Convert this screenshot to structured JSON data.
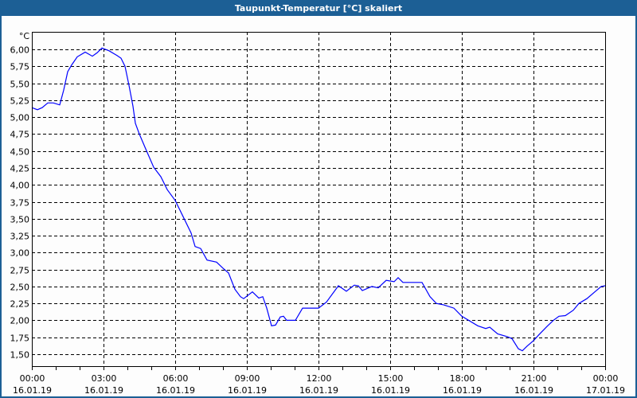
{
  "window": {
    "title": "Taupunkt-Temperatur [°C] skaliert"
  },
  "chart_data": {
    "type": "line",
    "title": "Taupunkt-Temperatur [°C] skaliert",
    "ylabel": "°C",
    "xlabel": "",
    "ylim": [
      1.375,
      6.25
    ],
    "yticks": [
      "1,50",
      "1,75",
      "2,00",
      "2,25",
      "2,50",
      "2,75",
      "3,00",
      "3,25",
      "3,50",
      "3,75",
      "4,00",
      "4,25",
      "4,50",
      "4,75",
      "5,00",
      "5,25",
      "5,50",
      "5,75",
      "6,00"
    ],
    "ytick_values": [
      1.5,
      1.75,
      2.0,
      2.25,
      2.5,
      2.75,
      3.0,
      3.25,
      3.5,
      3.75,
      4.0,
      4.25,
      4.5,
      4.75,
      5.0,
      5.25,
      5.5,
      5.75,
      6.0
    ],
    "xlim": [
      "16.01.19 00:00",
      "17.01.19 00:00"
    ],
    "xticks": [
      {
        "time": "00:00",
        "date": "16.01.19"
      },
      {
        "time": "03:00",
        "date": "16.01.19"
      },
      {
        "time": "06:00",
        "date": "16.01.19"
      },
      {
        "time": "09:00",
        "date": "16.01.19"
      },
      {
        "time": "12:00",
        "date": "16.01.19"
      },
      {
        "time": "15:00",
        "date": "16.01.19"
      },
      {
        "time": "18:00",
        "date": "16.01.19"
      },
      {
        "time": "21:00",
        "date": "16.01.19"
      },
      {
        "time": "00:00",
        "date": "17.01.19"
      }
    ],
    "grid": true,
    "line_color": "#0000ff",
    "series": [
      {
        "x": [
          "16.01.19 00:00",
          "16.01.19 00:14",
          "16.01.19 00:26",
          "16.01.19 00:40",
          "16.01.19 00:54",
          "16.01.19 01:10",
          "16.01.19 01:20",
          "16.01.19 01:30",
          "16.01.19 01:40",
          "16.01.19 01:54",
          "16.01.19 02:14",
          "16.01.19 02:32",
          "16.01.19 02:44",
          "16.01.19 02:56",
          "16.01.19 03:14",
          "16.01.19 03:34",
          "16.01.19 03:44",
          "16.01.19 03:54",
          "16.01.19 04:04",
          "16.01.19 04:14",
          "16.01.19 04:20",
          "16.01.19 04:30",
          "16.01.19 04:46",
          "16.01.19 05:06",
          "16.01.19 05:24",
          "16.01.19 05:40",
          "16.01.19 06:00",
          "16.01.19 06:20",
          "16.01.19 06:40",
          "16.01.19 06:50",
          "16.01.19 07:04",
          "16.01.19 07:20",
          "16.01.19 07:44",
          "16.01.19 08:00",
          "16.01.19 08:14",
          "16.01.19 08:30",
          "16.01.19 08:44",
          "16.01.19 08:52",
          "16.01.19 09:14",
          "16.01.19 09:30",
          "16.01.19 09:40",
          "16.01.19 09:50",
          "16.01.19 10:02",
          "16.01.19 10:12",
          "16.01.19 10:24",
          "16.01.19 10:32",
          "16.01.19 10:40",
          "16.01.19 11:02",
          "16.01.19 11:20",
          "16.01.19 11:34",
          "16.01.19 12:00",
          "16.01.19 12:20",
          "16.01.19 12:50",
          "16.01.19 13:10",
          "16.01.19 13:30",
          "16.01.19 13:40",
          "16.01.19 13:50",
          "16.01.19 14:14",
          "16.01.19 14:30",
          "16.01.19 14:50",
          "16.01.19 15:10",
          "16.01.19 15:20",
          "16.01.19 15:32",
          "16.01.19 16:00",
          "16.01.19 16:20",
          "16.01.19 16:40",
          "16.01.19 16:56",
          "16.01.19 17:14",
          "16.01.19 17:40",
          "16.01.19 18:00",
          "16.01.19 18:40",
          "16.01.19 19:00",
          "16.01.19 19:10",
          "16.01.19 19:30",
          "16.01.19 19:54",
          "16.01.19 20:06",
          "16.01.19 20:22",
          "16.01.19 20:32",
          "16.01.19 20:44",
          "16.01.19 21:00",
          "16.01.19 21:14",
          "16.01.19 21:34",
          "16.01.19 21:50",
          "16.01.19 22:04",
          "16.01.19 22:20",
          "16.01.19 22:40",
          "16.01.19 22:54",
          "16.01.19 23:14",
          "16.01.19 23:34",
          "16.01.19 23:50",
          "17.01.19 00:00"
        ],
        "y": [
          5.14,
          5.11,
          5.14,
          5.21,
          5.21,
          5.18,
          5.4,
          5.67,
          5.77,
          5.89,
          5.96,
          5.9,
          5.95,
          6.02,
          5.98,
          5.91,
          5.87,
          5.75,
          5.47,
          5.16,
          4.91,
          4.75,
          4.53,
          4.26,
          4.12,
          3.93,
          3.77,
          3.53,
          3.29,
          3.09,
          3.06,
          2.89,
          2.86,
          2.77,
          2.7,
          2.46,
          2.35,
          2.32,
          2.42,
          2.33,
          2.35,
          2.18,
          1.92,
          1.93,
          2.05,
          2.06,
          2.0,
          2.0,
          2.18,
          2.18,
          2.18,
          2.27,
          2.51,
          2.43,
          2.52,
          2.51,
          2.44,
          2.5,
          2.48,
          2.59,
          2.57,
          2.63,
          2.56,
          2.56,
          2.56,
          2.35,
          2.25,
          2.23,
          2.18,
          2.06,
          1.92,
          1.88,
          1.9,
          1.8,
          1.76,
          1.73,
          1.58,
          1.55,
          1.62,
          1.7,
          1.79,
          1.91,
          2.0,
          2.06,
          2.07,
          2.15,
          2.25,
          2.32,
          2.42,
          2.5,
          2.51
        ]
      }
    ]
  }
}
